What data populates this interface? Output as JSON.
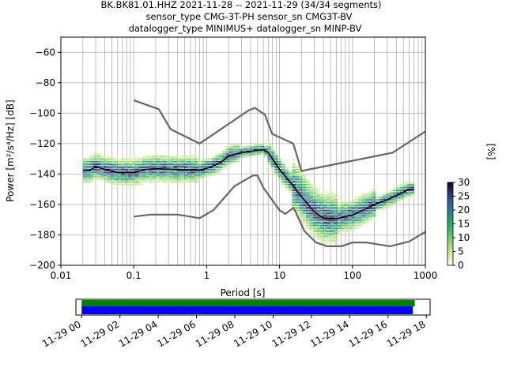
{
  "title_lines": [
    "BK.BK81.01.HHZ   2021-11-28 -- 2021-11-29  (34/34 segments)",
    "sensor_type CMG-3T-PH sensor_sn CMG3T-BV",
    "datalogger_type MINIMUS+ datalogger_sn MINP-BV"
  ],
  "chart_data": {
    "type": "heatmap",
    "xlabel": "Period [s]",
    "ylabel": "Power [m²/s⁴/Hz] [dB]",
    "x_scale": "log",
    "xlim": [
      0.01,
      1000
    ],
    "ylim": [
      -200,
      -50
    ],
    "grid": true,
    "x_ticks": [
      {
        "value": 0.01,
        "label": "0.01"
      },
      {
        "value": 0.1,
        "label": "0.1"
      },
      {
        "value": 1,
        "label": "1"
      },
      {
        "value": 10,
        "label": "10"
      },
      {
        "value": 100,
        "label": "100"
      },
      {
        "value": 1000,
        "label": "1000"
      }
    ],
    "y_ticks": [
      -60,
      -80,
      -100,
      -120,
      -140,
      -160,
      -180,
      -200
    ],
    "y_tick_labels": [
      "−60",
      "−80",
      "−100",
      "−120",
      "−140",
      "−160",
      "−180",
      "−200"
    ],
    "series": [
      {
        "role": "high-noise-model",
        "color": "#666666",
        "points": [
          [
            0.1,
            -91.5
          ],
          [
            0.22,
            -97.4
          ],
          [
            0.32,
            -110.5
          ],
          [
            0.8,
            -120
          ],
          [
            3.8,
            -98
          ],
          [
            4.6,
            -96.5
          ],
          [
            6.3,
            -101
          ],
          [
            7.9,
            -113.6
          ],
          [
            15.4,
            -120
          ],
          [
            20,
            -138
          ],
          [
            354,
            -126
          ],
          [
            1000,
            -112
          ]
        ]
      },
      {
        "role": "low-noise-model",
        "color": "#666666",
        "points": [
          [
            0.1,
            -168
          ],
          [
            0.17,
            -166.7
          ],
          [
            0.4,
            -166.7
          ],
          [
            0.8,
            -169
          ],
          [
            1.24,
            -163.7
          ],
          [
            2.4,
            -148
          ],
          [
            4.3,
            -141
          ],
          [
            5,
            -141
          ],
          [
            6,
            -149
          ],
          [
            10,
            -163.8
          ],
          [
            12,
            -166.2
          ],
          [
            15.6,
            -162.1
          ],
          [
            21.9,
            -177.5
          ],
          [
            31.6,
            -185
          ],
          [
            45,
            -187.5
          ],
          [
            70,
            -187.5
          ],
          [
            101,
            -185
          ],
          [
            154,
            -185
          ],
          [
            328,
            -187.5
          ],
          [
            600,
            -184.4
          ],
          [
            1000,
            -178
          ]
        ]
      },
      {
        "role": "mean-psd",
        "color": "#000000",
        "points": [
          [
            0.02,
            -138
          ],
          [
            0.025,
            -137.5
          ],
          [
            0.03,
            -135
          ],
          [
            0.04,
            -137
          ],
          [
            0.06,
            -139
          ],
          [
            0.1,
            -139
          ],
          [
            0.14,
            -137
          ],
          [
            0.2,
            -136.5
          ],
          [
            0.4,
            -137
          ],
          [
            0.8,
            -137.5
          ],
          [
            1.2,
            -135
          ],
          [
            1.6,
            -132
          ],
          [
            2,
            -128
          ],
          [
            3,
            -126
          ],
          [
            4,
            -125
          ],
          [
            6,
            -124
          ],
          [
            7,
            -126
          ],
          [
            10,
            -137
          ],
          [
            15,
            -147
          ],
          [
            20,
            -155
          ],
          [
            30,
            -165
          ],
          [
            40,
            -169
          ],
          [
            60,
            -169.5
          ],
          [
            80,
            -168
          ],
          [
            100,
            -167
          ],
          [
            150,
            -163
          ],
          [
            200,
            -160
          ],
          [
            300,
            -157
          ],
          [
            450,
            -153
          ],
          [
            600,
            -150
          ],
          [
            700,
            -150
          ]
        ]
      }
    ],
    "colorbar": {
      "label": "[%]",
      "range": [
        0,
        30
      ],
      "ticks": [
        0,
        5,
        10,
        15,
        20,
        25,
        30
      ],
      "colormap": "pqlx"
    }
  },
  "timeline": {
    "tick_labels": [
      "11-29 00",
      "11-29 02",
      "11-29 04",
      "11-29 06",
      "11-29 08",
      "11-29 10",
      "11-29 12",
      "11-29 14",
      "11-29 16",
      "11-29 18"
    ],
    "tick_hours": [
      0,
      2,
      4,
      6,
      8,
      10,
      12,
      14,
      16,
      18
    ],
    "range_hours": [
      -0.3,
      18.2
    ],
    "bars": [
      {
        "color": "#008000",
        "start_hour": 0,
        "end_hour": 17.4
      },
      {
        "color": "#0000ff",
        "start_hour": 0,
        "end_hour": 17.3
      }
    ]
  }
}
